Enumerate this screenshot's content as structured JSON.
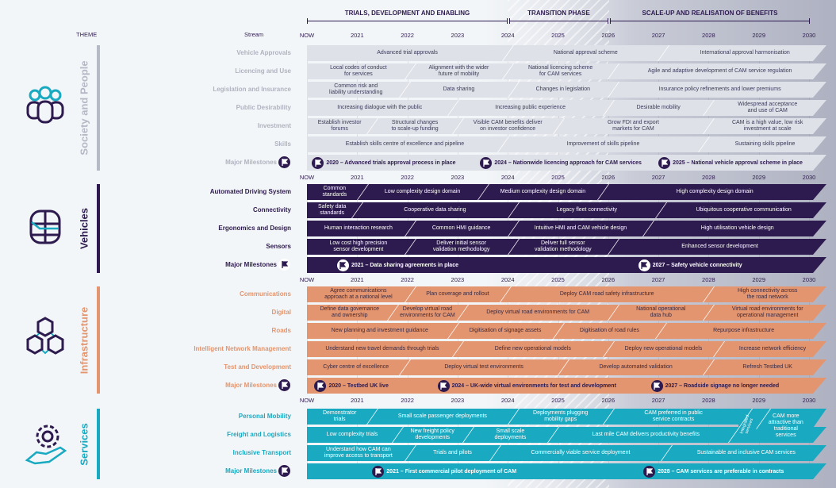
{
  "header": {
    "theme_label": "THEME",
    "stream_label": "Stream",
    "phases": [
      "TRIALS, DEVELOPMENT AND ENABLING",
      "TRANSITION PHASE",
      "SCALE-UP AND REALISATION OF BENEFITS"
    ]
  },
  "axis_labels": [
    "NOW",
    "2021",
    "2022",
    "2023",
    "2024",
    "2025",
    "2026",
    "2027",
    "2028",
    "2029",
    "2030"
  ],
  "themes": [
    {
      "name": "Society and People",
      "icon": "people-icon",
      "color": "#b5b8c5",
      "bar_color": "#dfe1e8",
      "text_color": "#3b3a5a",
      "label_color": "#b0b3c0",
      "rows": [
        {
          "label": "Vehicle Approvals",
          "segments": [
            {
              "text": "Advanced trial approvals",
              "from": 2020,
              "to": 2024
            },
            {
              "text": "National approval scheme",
              "from": 2024,
              "to": 2027.1
            },
            {
              "text": "International approval harmonisation",
              "from": 2027.1,
              "to": 2030.3
            }
          ]
        },
        {
          "label": "Licencing and Use",
          "segments": [
            {
              "text": "Local codes of conduct\nfor services",
              "from": 2020,
              "to": 2022.05
            },
            {
              "text": "Alignment with the wider\nfuture of mobility",
              "from": 2022.05,
              "to": 2024
            },
            {
              "text": "National licencing scheme\nfor CAM services",
              "from": 2024,
              "to": 2026.1
            },
            {
              "text": "Agile and adaptive development of CAM service regulation",
              "from": 2026.1,
              "to": 2030.3
            }
          ]
        },
        {
          "label": "Legislation and Insurance",
          "segments": [
            {
              "text": "Common risk and\nliability understanding",
              "from": 2020,
              "to": 2021.95
            },
            {
              "text": "Data sharing",
              "from": 2021.95,
              "to": 2024.1
            },
            {
              "text": "Changes in legislation",
              "from": 2024.1,
              "to": 2026.1
            },
            {
              "text": "Insurance policy refinements and lower premiums",
              "from": 2026.1,
              "to": 2030.3
            }
          ]
        },
        {
          "label": "Public Desirability",
          "segments": [
            {
              "text": "Increasing dialogue with the public",
              "from": 2020,
              "to": 2022.9
            },
            {
              "text": "Increasing public experience",
              "from": 2022.9,
              "to": 2026
            },
            {
              "text": "Desirable mobility",
              "from": 2026,
              "to": 2028
            },
            {
              "text": "Widespread acceptance\nand use of CAM",
              "from": 2028,
              "to": 2030.3
            }
          ]
        },
        {
          "label": "Investment",
          "segments": [
            {
              "text": "Establish investor\nforums",
              "from": 2020,
              "to": 2021.3
            },
            {
              "text": "Structural changes\nto scale-up funding",
              "from": 2021.3,
              "to": 2023
            },
            {
              "text": "Visible CAM benefits deliver\non investor confidence",
              "from": 2023,
              "to": 2025
            },
            {
              "text": "Grow FDI and export\nmarkets for CAM",
              "from": 2025,
              "to": 2028
            },
            {
              "text": "CAM is a high value, low risk\ninvestment at scale",
              "from": 2028,
              "to": 2030.3
            }
          ]
        },
        {
          "label": "Skills",
          "segments": [
            {
              "text": "Establish skills centre of excellence and pipeline",
              "from": 2020,
              "to": 2023.9
            },
            {
              "text": "Improvement of skills pipeline",
              "from": 2023.9,
              "to": 2027.9
            },
            {
              "text": "Sustaining skills pipeline",
              "from": 2027.9,
              "to": 2030.3
            }
          ]
        }
      ],
      "milestones": {
        "label": "Major Milestones",
        "items": [
          {
            "text": "2020 – Advanced trials approval process in place",
            "at": 2020.1
          },
          {
            "text": "2024 – Nationwide licencing approach for CAM services",
            "at": 2023.45
          },
          {
            "text": "2025 – National vehicle approval scheme in place",
            "at": 2027.0
          }
        ]
      }
    },
    {
      "name": "Vehicles",
      "icon": "vehicle-icon",
      "color": "#2d1a4e",
      "bar_color": "#2d1a4e",
      "text_color": "#ffffff",
      "label_color": "#2d1a4e",
      "rows": [
        {
          "label": "Automated Driving System",
          "segments": [
            {
              "text": "Common\nstandards",
              "from": 2020,
              "to": 2021.1
            },
            {
              "text": "Low complexity design domain",
              "from": 2021.1,
              "to": 2023.5
            },
            {
              "text": "Medium complexity design domain",
              "from": 2023.5,
              "to": 2025.9
            },
            {
              "text": "High complexity design domain",
              "from": 2025.9,
              "to": 2030.3
            }
          ]
        },
        {
          "label": "Connectivity",
          "segments": [
            {
              "text": "Safety data\nstandards",
              "from": 2020,
              "to": 2021
            },
            {
              "text": "Cooperative data sharing",
              "from": 2021,
              "to": 2024.1
            },
            {
              "text": "Legacy fleet connectivity",
              "from": 2024.1,
              "to": 2027.05
            },
            {
              "text": "Ubiquitous cooperative communication",
              "from": 2027.05,
              "to": 2030.3
            }
          ]
        },
        {
          "label": "Ergonomics and Design",
          "segments": [
            {
              "text": "Human interaction research",
              "from": 2020,
              "to": 2022.05
            },
            {
              "text": "Common HMI guidance",
              "from": 2022.05,
              "to": 2024.1
            },
            {
              "text": "Intuitive HMI and CAM vehicle design",
              "from": 2024.1,
              "to": 2026.8
            },
            {
              "text": "High utilisation vehicle design",
              "from": 2026.8,
              "to": 2030.3
            }
          ]
        },
        {
          "label": "Sensors",
          "segments": [
            {
              "text": "Low cost high precision\nsensor development",
              "from": 2020,
              "to": 2022.05
            },
            {
              "text": "Deliver initial sensor\nvalidation methodology",
              "from": 2022.05,
              "to": 2024.1
            },
            {
              "text": "Deliver full sensor\nvalidation methodology",
              "from": 2024.1,
              "to": 2026.1
            },
            {
              "text": "Enhanced sensor development",
              "from": 2026.1,
              "to": 2030.3
            }
          ]
        }
      ],
      "milestones": {
        "label": "Major Milestones",
        "items": [
          {
            "text": "2021 – Data sharing agreements in place",
            "at": 2020.6
          },
          {
            "text": "2027 – Safety vehicle connectivity",
            "at": 2026.6
          }
        ]
      }
    },
    {
      "name": "Infrastructure",
      "icon": "cubes-icon",
      "color": "#e3956f",
      "bar_color": "#e3956f",
      "text_color": "#3b2a40",
      "label_color": "#e3956f",
      "rows": [
        {
          "label": "Communications",
          "segments": [
            {
              "text": "Agree communications\napproach at a national level",
              "from": 2020,
              "to": 2022.05
            },
            {
              "text": "Plan coverage and rollout",
              "from": 2022.05,
              "to": 2023.95
            },
            {
              "text": "Deploy CAM road safety infrastructure",
              "from": 2023.95,
              "to": 2028
            },
            {
              "text": "High connectivity across\nthe road network",
              "from": 2028,
              "to": 2030.3
            }
          ]
        },
        {
          "label": "Digital",
          "segments": [
            {
              "text": "Define data governance\nand ownership",
              "from": 2020,
              "to": 2021.7
            },
            {
              "text": "Develop virtual road\nenvironments for CAM",
              "from": 2021.7,
              "to": 2023.1
            },
            {
              "text": "Deploy virtual road environments for CAM",
              "from": 2023.1,
              "to": 2026.1
            },
            {
              "text": "National operational\ndata hub",
              "from": 2026.1,
              "to": 2028
            },
            {
              "text": "Virtual road environments for\noperational management",
              "from": 2028,
              "to": 2030.3
            }
          ]
        },
        {
          "label": "Roads",
          "segments": [
            {
              "text": "New planning and investment guidance",
              "from": 2020,
              "to": 2022.9
            },
            {
              "text": "Digitisation of signage assets",
              "from": 2022.9,
              "to": 2025
            },
            {
              "text": "Digitisation of road rules",
              "from": 2025,
              "to": 2027.05
            },
            {
              "text": "Repurpose infrastructure",
              "from": 2027.05,
              "to": 2030.3
            }
          ]
        },
        {
          "label": "Intelligent Network Management",
          "segments": [
            {
              "text": "Understand new travel demands through trials",
              "from": 2020,
              "to": 2023
            },
            {
              "text": "Define new operational models",
              "from": 2023,
              "to": 2026
            },
            {
              "text": "Deploy new operational models",
              "from": 2026,
              "to": 2028.2
            },
            {
              "text": "Increase network efficiency",
              "from": 2028.2,
              "to": 2030.3
            }
          ]
        },
        {
          "label": "Test and Development",
          "segments": [
            {
              "text": "Cyber centre of excellence",
              "from": 2020,
              "to": 2021.95
            },
            {
              "text": "Deploy virtual test environments",
              "from": 2021.95,
              "to": 2025.1
            },
            {
              "text": "Develop automated validation",
              "from": 2025.1,
              "to": 2028
            },
            {
              "text": "Refresh Testbed UK",
              "from": 2028,
              "to": 2030.3
            }
          ]
        }
      ],
      "milestones": {
        "label": "Major Milestones",
        "items": [
          {
            "text": "2020 – Testbed UK live",
            "at": 2020.15
          },
          {
            "text": "2024 – UK-wide virtual environments for test and development",
            "at": 2022.6
          },
          {
            "text": "2027 – Roadside signage no longer needed",
            "at": 2026.85
          }
        ]
      }
    },
    {
      "name": "Services",
      "icon": "services-icon",
      "color": "#19a9c0",
      "bar_color": "#19a9c0",
      "text_color": "#ffffff",
      "label_color": "#19a9c0",
      "rows": [
        {
          "label": "Personal Mobility",
          "segments": [
            {
              "text": "Demonstrator\ntrials",
              "from": 2020,
              "to": 2021.3
            },
            {
              "text": "Small scale passenger deployments",
              "from": 2021.3,
              "to": 2024.1
            },
            {
              "text": "Deployments plugging\nmobility gaps",
              "from": 2024.1,
              "to": 2026
            },
            {
              "text": "CAM preferred in public\nservice contracts",
              "from": 2026,
              "to": 2028.6
            },
            {
              "text": "Integrated services",
              "from": 2028.6,
              "to": 2028.95
            },
            {
              "text": "CAM more\nattractive than\ntraditional\nservices",
              "from": 2028.95,
              "to": 2030.3
            }
          ]
        },
        {
          "label": "Freight and Logistics",
          "segments": [
            {
              "text": "Low complexity trials",
              "from": 2020,
              "to": 2021.8
            },
            {
              "text": "New freight policy\ndevelopments",
              "from": 2021.8,
              "to": 2023.2
            },
            {
              "text": "Small scale\ndeployments",
              "from": 2023.2,
              "to": 2024.9
            },
            {
              "text": "Last mile CAM delivers productivity benefits",
              "from": 2024.9,
              "to": 2028.6
            }
          ]
        },
        {
          "label": "Inclusive Transport",
          "segments": [
            {
              "text": "Understand how CAM can\nimprove access to transport",
              "from": 2020,
              "to": 2022.05
            },
            {
              "text": "Trials and pilots",
              "from": 2022.05,
              "to": 2023.75
            },
            {
              "text": "Commercially viable service deployment",
              "from": 2023.75,
              "to": 2027.15
            },
            {
              "text": "Sustainable and inclusive CAM services",
              "from": 2027.15,
              "to": 2030.3
            }
          ]
        }
      ],
      "milestones": {
        "label": "Major Milestones",
        "items": [
          {
            "text": "2021 – First commercial pilot deployment of CAM",
            "at": 2021.3
          },
          {
            "text": "2028 – CAM services are preferable in contracts",
            "at": 2026.7
          }
        ]
      }
    }
  ]
}
